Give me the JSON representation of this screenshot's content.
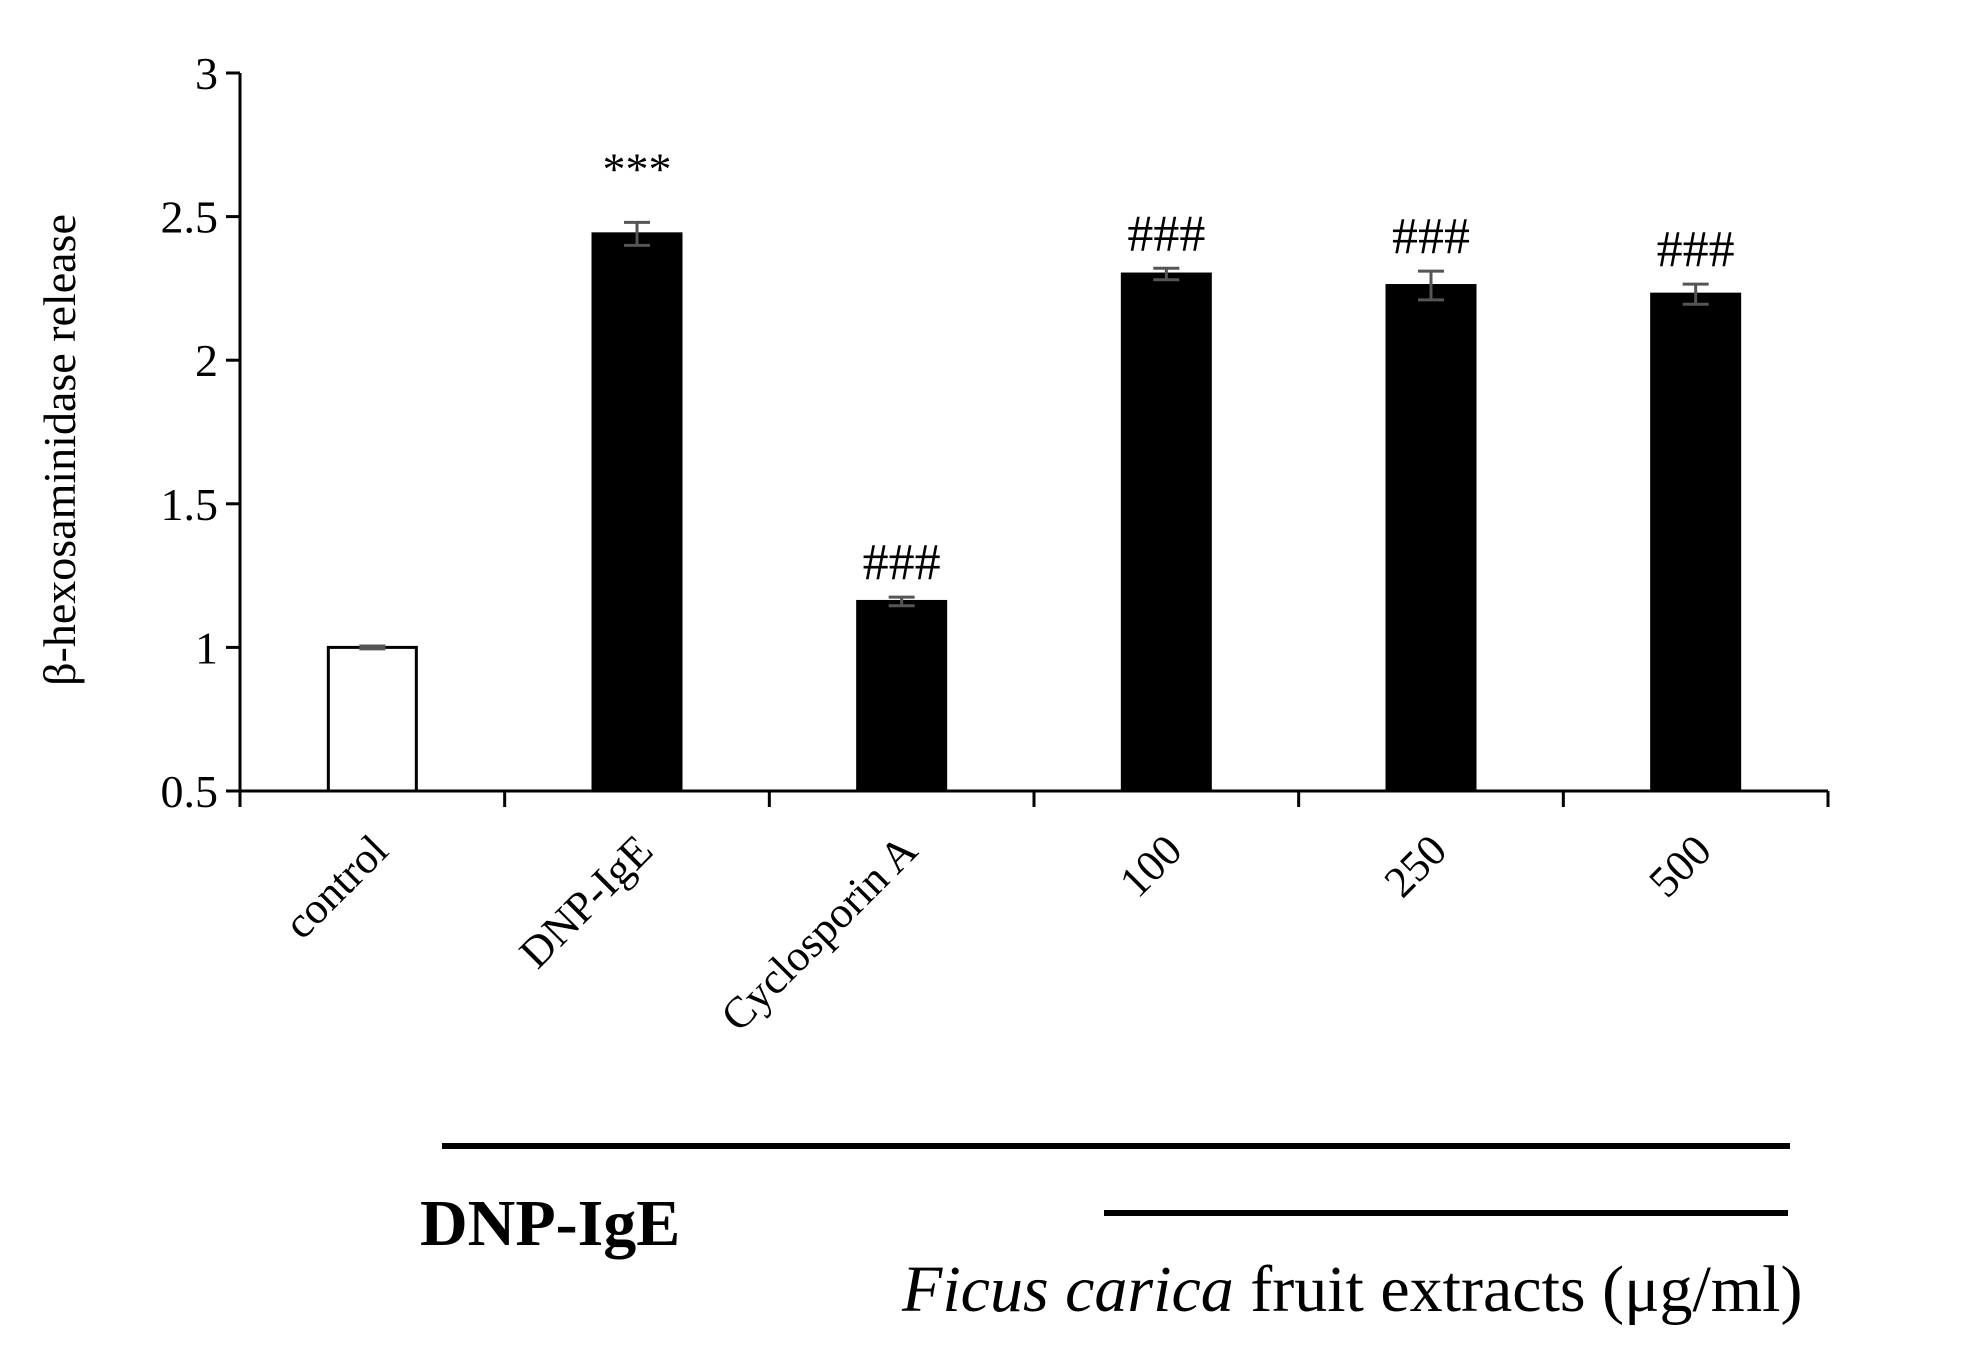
{
  "chart_data": {
    "type": "bar",
    "ylabel": "β-hexosaminidase release",
    "xlabel": "",
    "ylim": [
      0.5,
      3
    ],
    "yticks": [
      "0.5",
      "1",
      "1.5",
      "2",
      "2.5",
      "3"
    ],
    "categories": [
      "control",
      "DNP-IgE",
      "Cyclosporin A",
      "100",
      "250",
      "500"
    ],
    "values": [
      1.0,
      2.44,
      1.16,
      2.3,
      2.26,
      2.23
    ],
    "errors": [
      0.005,
      0.04,
      0.015,
      0.02,
      0.05,
      0.035
    ],
    "bar_colors": [
      "#ffffff",
      "#000000",
      "#000000",
      "#000000",
      "#000000",
      "#000000"
    ],
    "annotations": [
      "",
      "***",
      "###",
      "###",
      "###",
      "###"
    ],
    "grid": false,
    "legend": "none"
  },
  "footer": {
    "group1_label": "DNP-IgE",
    "group2_label_italic": "Ficus carica",
    "group2_label_rest": " fruit  extracts  (μg/ml)"
  }
}
